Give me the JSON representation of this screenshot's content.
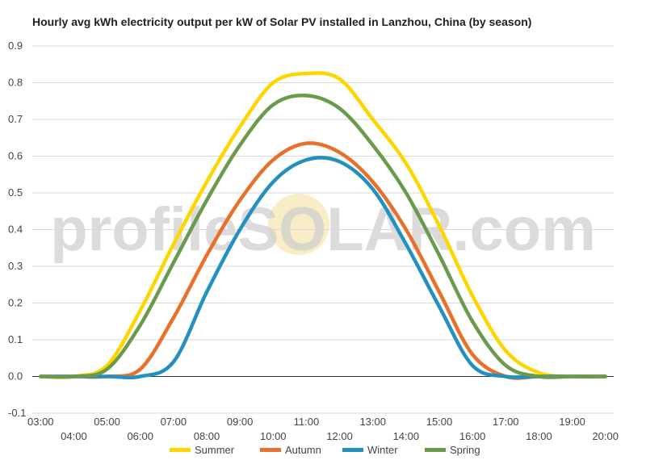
{
  "chart_data": {
    "type": "line",
    "title": "Hourly avg kWh electricity output per kW of Solar PV installed in Lanzhou, China (by season)",
    "watermark": "profileSOLAR.com",
    "x": [
      3,
      4,
      5,
      6,
      7,
      8,
      9,
      10,
      11,
      12,
      13,
      14,
      15,
      16,
      17,
      18,
      19,
      20
    ],
    "x_tick_labels": [
      "03:00",
      "04:00",
      "05:00",
      "06:00",
      "07:00",
      "08:00",
      "09:00",
      "10:00",
      "11:00",
      "12:00",
      "13:00",
      "14:00",
      "15:00",
      "16:00",
      "17:00",
      "18:00",
      "19:00",
      "20:00"
    ],
    "ylim": [
      -0.1,
      0.9
    ],
    "y_ticks": [
      "0.9",
      "0.8",
      "0.7",
      "0.6",
      "0.5",
      "0.4",
      "0.3",
      "0.2",
      "0.1",
      "0.0",
      "-0.1"
    ],
    "grid": true,
    "legend_position": "bottom",
    "series": [
      {
        "name": "Summer",
        "color": "#FFD500",
        "values": [
          0,
          0,
          0.03,
          0.18,
          0.36,
          0.53,
          0.68,
          0.8,
          0.825,
          0.81,
          0.7,
          0.58,
          0.41,
          0.22,
          0.07,
          0.01,
          0,
          0
        ]
      },
      {
        "name": "Autumn",
        "color": "#E8702A",
        "values": [
          0,
          0,
          0,
          0.02,
          0.16,
          0.33,
          0.48,
          0.59,
          0.635,
          0.61,
          0.53,
          0.4,
          0.23,
          0.06,
          0,
          0,
          0,
          0
        ]
      },
      {
        "name": "Winter",
        "color": "#2490C0",
        "values": [
          0,
          0,
          0,
          0,
          0.04,
          0.23,
          0.4,
          0.53,
          0.59,
          0.585,
          0.51,
          0.36,
          0.19,
          0.03,
          0,
          0,
          0,
          0
        ]
      },
      {
        "name": "Spring",
        "color": "#6A9A4C",
        "values": [
          0,
          0,
          0.02,
          0.14,
          0.31,
          0.48,
          0.63,
          0.74,
          0.765,
          0.73,
          0.63,
          0.5,
          0.33,
          0.15,
          0.03,
          0,
          0,
          0
        ]
      }
    ]
  }
}
